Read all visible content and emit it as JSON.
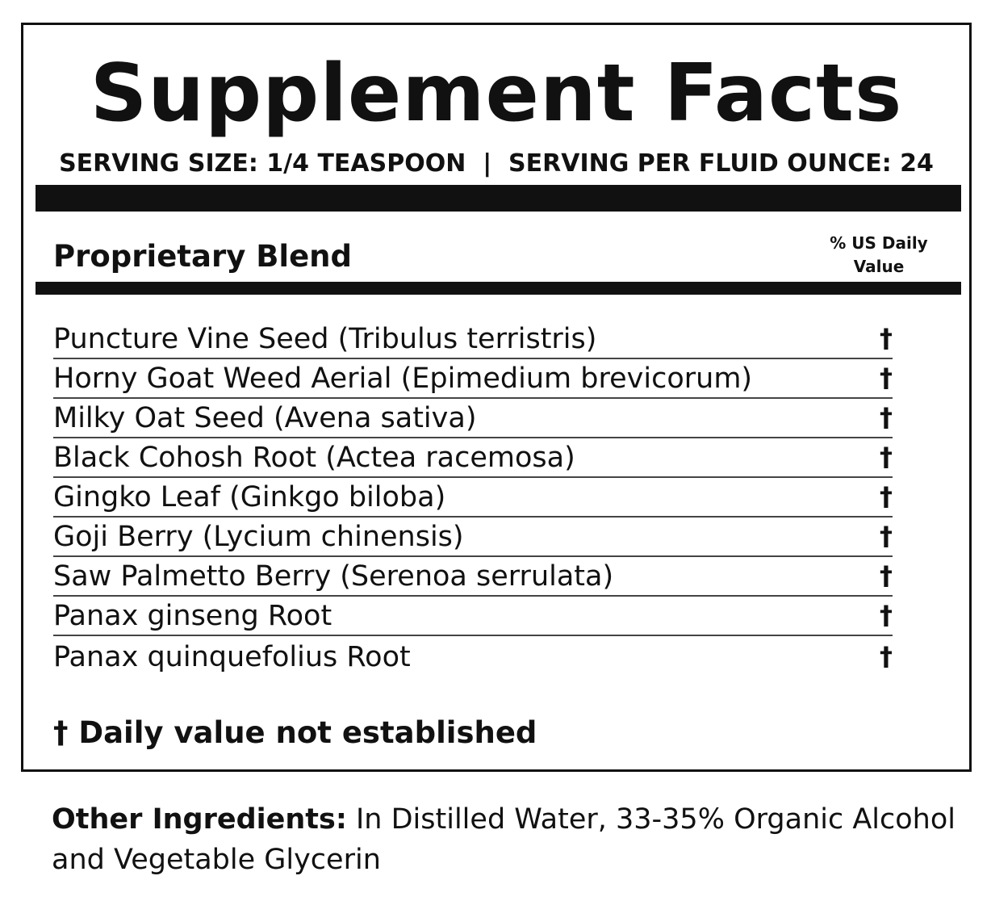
{
  "title": "Supplement Facts",
  "serving": "SERVING SIZE: 1/4 TEASPOON  |  SERVING PER FLUID OUNCE: 24",
  "blend_label": "Proprietary Blend",
  "dv_header_line1": "% US Daily",
  "dv_header_line2": "Value",
  "ingredients": [
    {
      "name": "Puncture Vine Seed (Tribulus terristris)",
      "dv": "†"
    },
    {
      "name": "Horny Goat Weed Aerial (Epimedium brevicorum)",
      "dv": "†"
    },
    {
      "name": "Milky Oat Seed (Avena sativa)",
      "dv": "†"
    },
    {
      "name": "Black Cohosh Root (Actea racemosa)",
      "dv": "†"
    },
    {
      "name": "Gingko Leaf (Ginkgo biloba)",
      "dv": "†"
    },
    {
      "name": "Goji Berry (Lycium chinensis)",
      "dv": "†"
    },
    {
      "name": "Saw Palmetto Berry (Serenoa serrulata)",
      "dv": "†"
    },
    {
      "name": "Panax ginseng Root",
      "dv": "†"
    },
    {
      "name": "Panax quinquefolius Root",
      "dv": "†"
    }
  ],
  "footnote": "† Daily value not established",
  "other_label": "Other Ingredients:",
  "other_text": " In Distilled Water, 33-35% Organic Alcohol and Vegetable Glycerin"
}
